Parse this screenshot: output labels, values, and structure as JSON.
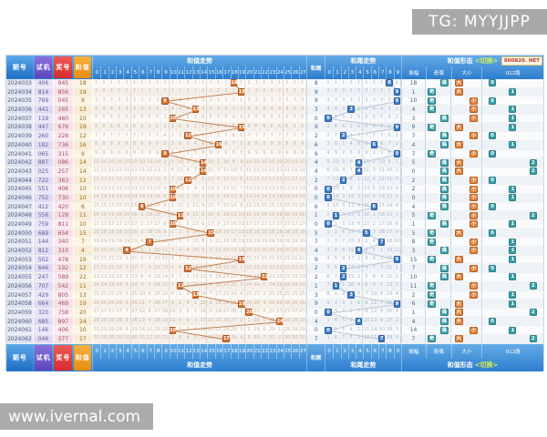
{
  "watermark_top": "TG: MYYJJPP",
  "watermark_bottom": "www.ivernal.com",
  "site_badge": "800820. NET",
  "header": {
    "issue": "期号",
    "test": "试机",
    "prize": "奖号",
    "sum": "和值",
    "sum_trend_title": "和值走势",
    "tail": "和尾",
    "tail_trend_title": "和尾走势",
    "amplitude": "振幅",
    "odd_even": "奇偶",
    "big_small": "大小",
    "road012": "012路",
    "form_title": "和值形态",
    "switch_label": "<切换>"
  },
  "sum_columns": [
    "0",
    "1",
    "2",
    "3",
    "4",
    "5",
    "6",
    "7",
    "8",
    "9",
    "10",
    "11",
    "12",
    "13",
    "14",
    "15",
    "16",
    "17",
    "18",
    "19",
    "20",
    "21",
    "22",
    "23",
    "24",
    "25",
    "26",
    "27"
  ],
  "tail_columns": [
    "0",
    "1",
    "2",
    "3",
    "4",
    "5",
    "6",
    "7",
    "8",
    "9"
  ],
  "rows": [
    {
      "issue": "2024033",
      "test": "406",
      "prize": "945",
      "sum": 18,
      "tail": 8,
      "amp": 18,
      "oe": "偶",
      "bs": "大",
      "road": 0
    },
    {
      "issue": "2024034",
      "test": "814",
      "prize": "856",
      "sum": 19,
      "tail": 9,
      "amp": 1,
      "oe": "奇",
      "bs": "大",
      "road": 1
    },
    {
      "issue": "2024035",
      "test": "769",
      "prize": "045",
      "sum": 9,
      "tail": 9,
      "amp": 10,
      "oe": "奇",
      "bs": "小",
      "road": 0
    },
    {
      "issue": "2024036",
      "test": "441",
      "prize": "265",
      "sum": 13,
      "tail": 3,
      "amp": 4,
      "oe": "奇",
      "bs": "小",
      "road": 1
    },
    {
      "issue": "2024037",
      "test": "119",
      "prize": "460",
      "sum": 10,
      "tail": 0,
      "amp": 3,
      "oe": "偶",
      "bs": "小",
      "road": 1
    },
    {
      "issue": "2024038",
      "test": "447",
      "prize": "676",
      "sum": 19,
      "tail": 9,
      "amp": 9,
      "oe": "奇",
      "bs": "大",
      "road": 1
    },
    {
      "issue": "2024039",
      "test": "260",
      "prize": "228",
      "sum": 12,
      "tail": 2,
      "amp": 7,
      "oe": "偶",
      "bs": "小",
      "road": 0
    },
    {
      "issue": "2024040",
      "test": "182",
      "prize": "736",
      "sum": 16,
      "tail": 6,
      "amp": 4,
      "oe": "偶",
      "bs": "大",
      "road": 1
    },
    {
      "issue": "2024041",
      "test": "065",
      "prize": "315",
      "sum": 9,
      "tail": 9,
      "amp": 7,
      "oe": "奇",
      "bs": "小",
      "road": 0
    },
    {
      "issue": "2024042",
      "test": "887",
      "prize": "086",
      "sum": 14,
      "tail": 4,
      "amp": 5,
      "oe": "偶",
      "bs": "大",
      "road": 2
    },
    {
      "issue": "2024043",
      "test": "025",
      "prize": "257",
      "sum": 14,
      "tail": 4,
      "amp": 0,
      "oe": "偶",
      "bs": "大",
      "road": 2
    },
    {
      "issue": "2024044",
      "test": "722",
      "prize": "363",
      "sum": 12,
      "tail": 2,
      "amp": 2,
      "oe": "偶",
      "bs": "小",
      "road": 0
    },
    {
      "issue": "2024045",
      "test": "551",
      "prize": "406",
      "sum": 10,
      "tail": 0,
      "amp": 2,
      "oe": "偶",
      "bs": "小",
      "road": 1
    },
    {
      "issue": "2024046",
      "test": "752",
      "prize": "730",
      "sum": 10,
      "tail": 0,
      "amp": 0,
      "oe": "偶",
      "bs": "小",
      "road": 1
    },
    {
      "issue": "2024047",
      "test": "412",
      "prize": "420",
      "sum": 6,
      "tail": 6,
      "amp": 4,
      "oe": "偶",
      "bs": "小",
      "road": 0
    },
    {
      "issue": "2024048",
      "test": "556",
      "prize": "128",
      "sum": 11,
      "tail": 1,
      "amp": 5,
      "oe": "奇",
      "bs": "小",
      "road": 2
    },
    {
      "issue": "2024049",
      "test": "759",
      "prize": "811",
      "sum": 10,
      "tail": 0,
      "amp": 1,
      "oe": "偶",
      "bs": "小",
      "road": 1
    },
    {
      "issue": "2024050",
      "test": "689",
      "prize": "654",
      "sum": 15,
      "tail": 5,
      "amp": 5,
      "oe": "奇",
      "bs": "大",
      "road": 0
    },
    {
      "issue": "2024051",
      "test": "144",
      "prize": "340",
      "sum": 7,
      "tail": 7,
      "amp": 8,
      "oe": "奇",
      "bs": "小",
      "road": 1
    },
    {
      "issue": "2024052",
      "test": "812",
      "prize": "310",
      "sum": 4,
      "tail": 4,
      "amp": 3,
      "oe": "偶",
      "bs": "小",
      "road": 1
    },
    {
      "issue": "2024053",
      "test": "502",
      "prize": "478",
      "sum": 19,
      "tail": 9,
      "amp": 15,
      "oe": "奇",
      "bs": "大",
      "road": 1
    },
    {
      "issue": "2024054",
      "test": "646",
      "prize": "192",
      "sum": 12,
      "tail": 2,
      "amp": 7,
      "oe": "偶",
      "bs": "小",
      "road": 0
    },
    {
      "issue": "2024055",
      "test": "247",
      "prize": "589",
      "sum": 22,
      "tail": 2,
      "amp": 10,
      "oe": "偶",
      "bs": "大",
      "road": 1
    },
    {
      "issue": "2024056",
      "test": "707",
      "prize": "542",
      "sum": 11,
      "tail": 1,
      "amp": 11,
      "oe": "奇",
      "bs": "小",
      "road": 2
    },
    {
      "issue": "2024057",
      "test": "429",
      "prize": "805",
      "sum": 13,
      "tail": 3,
      "amp": 2,
      "oe": "奇",
      "bs": "小",
      "road": 1
    },
    {
      "issue": "2024058",
      "test": "664",
      "prize": "469",
      "sum": 19,
      "tail": 9,
      "amp": 6,
      "oe": "奇",
      "bs": "大",
      "road": 1
    },
    {
      "issue": "2024059",
      "test": "320",
      "prize": "758",
      "sum": 20,
      "tail": 0,
      "amp": 1,
      "oe": "偶",
      "bs": "大",
      "road": 2
    },
    {
      "issue": "2024060",
      "test": "685",
      "prize": "897",
      "sum": 24,
      "tail": 4,
      "amp": 4,
      "oe": "偶",
      "bs": "大",
      "road": 0
    },
    {
      "issue": "2024061",
      "test": "146",
      "prize": "406",
      "sum": 10,
      "tail": 0,
      "amp": 14,
      "oe": "偶",
      "bs": "小",
      "road": 1
    },
    {
      "issue": "2024062",
      "test": "046",
      "prize": "377",
      "sum": 17,
      "tail": 7,
      "amp": 7,
      "oe": "奇",
      "bs": "大",
      "road": 2
    }
  ],
  "chart_data": {
    "type": "line",
    "title": "和值走势 / 和尾走势 (福彩3D)",
    "categories": [
      "2024033",
      "2024034",
      "2024035",
      "2024036",
      "2024037",
      "2024038",
      "2024039",
      "2024040",
      "2024041",
      "2024042",
      "2024043",
      "2024044",
      "2024045",
      "2024046",
      "2024047",
      "2024048",
      "2024049",
      "2024050",
      "2024051",
      "2024052",
      "2024053",
      "2024054",
      "2024055",
      "2024056",
      "2024057",
      "2024058",
      "2024059",
      "2024060",
      "2024061",
      "2024062"
    ],
    "series": [
      {
        "name": "和值",
        "values": [
          18,
          19,
          9,
          13,
          10,
          19,
          12,
          16,
          9,
          14,
          14,
          12,
          10,
          10,
          6,
          11,
          10,
          15,
          7,
          4,
          19,
          12,
          22,
          11,
          13,
          19,
          20,
          24,
          10,
          17
        ],
        "range": [
          0,
          27
        ],
        "marker_color": "#d97434"
      },
      {
        "name": "和尾",
        "values": [
          8,
          9,
          9,
          3,
          0,
          9,
          2,
          6,
          9,
          4,
          4,
          2,
          0,
          0,
          6,
          1,
          0,
          5,
          7,
          4,
          9,
          2,
          2,
          1,
          3,
          9,
          0,
          4,
          0,
          7
        ],
        "range": [
          0,
          9
        ],
        "marker_color": "#3f7ec7"
      },
      {
        "name": "振幅",
        "values": [
          18,
          1,
          10,
          4,
          3,
          9,
          7,
          4,
          7,
          5,
          0,
          2,
          2,
          0,
          4,
          5,
          1,
          5,
          8,
          3,
          15,
          7,
          10,
          11,
          2,
          6,
          1,
          4,
          14,
          7
        ]
      }
    ],
    "legend_position": "none",
    "grid": true
  },
  "colors": {
    "header_blue": "#2e7ecf",
    "test_purple": "#5f43bd",
    "prize_red": "#d42b2e",
    "sum_orange": "#e88d0e",
    "sum_marker": "#d97434",
    "tail_marker": "#3f7ec7",
    "oe_marker": "#3ba0a8",
    "bs_marker": "#e0813c",
    "sum_line": "#c58050",
    "tail_line": "#bcc6d2",
    "watermark_gray": "#a9a9a9"
  }
}
